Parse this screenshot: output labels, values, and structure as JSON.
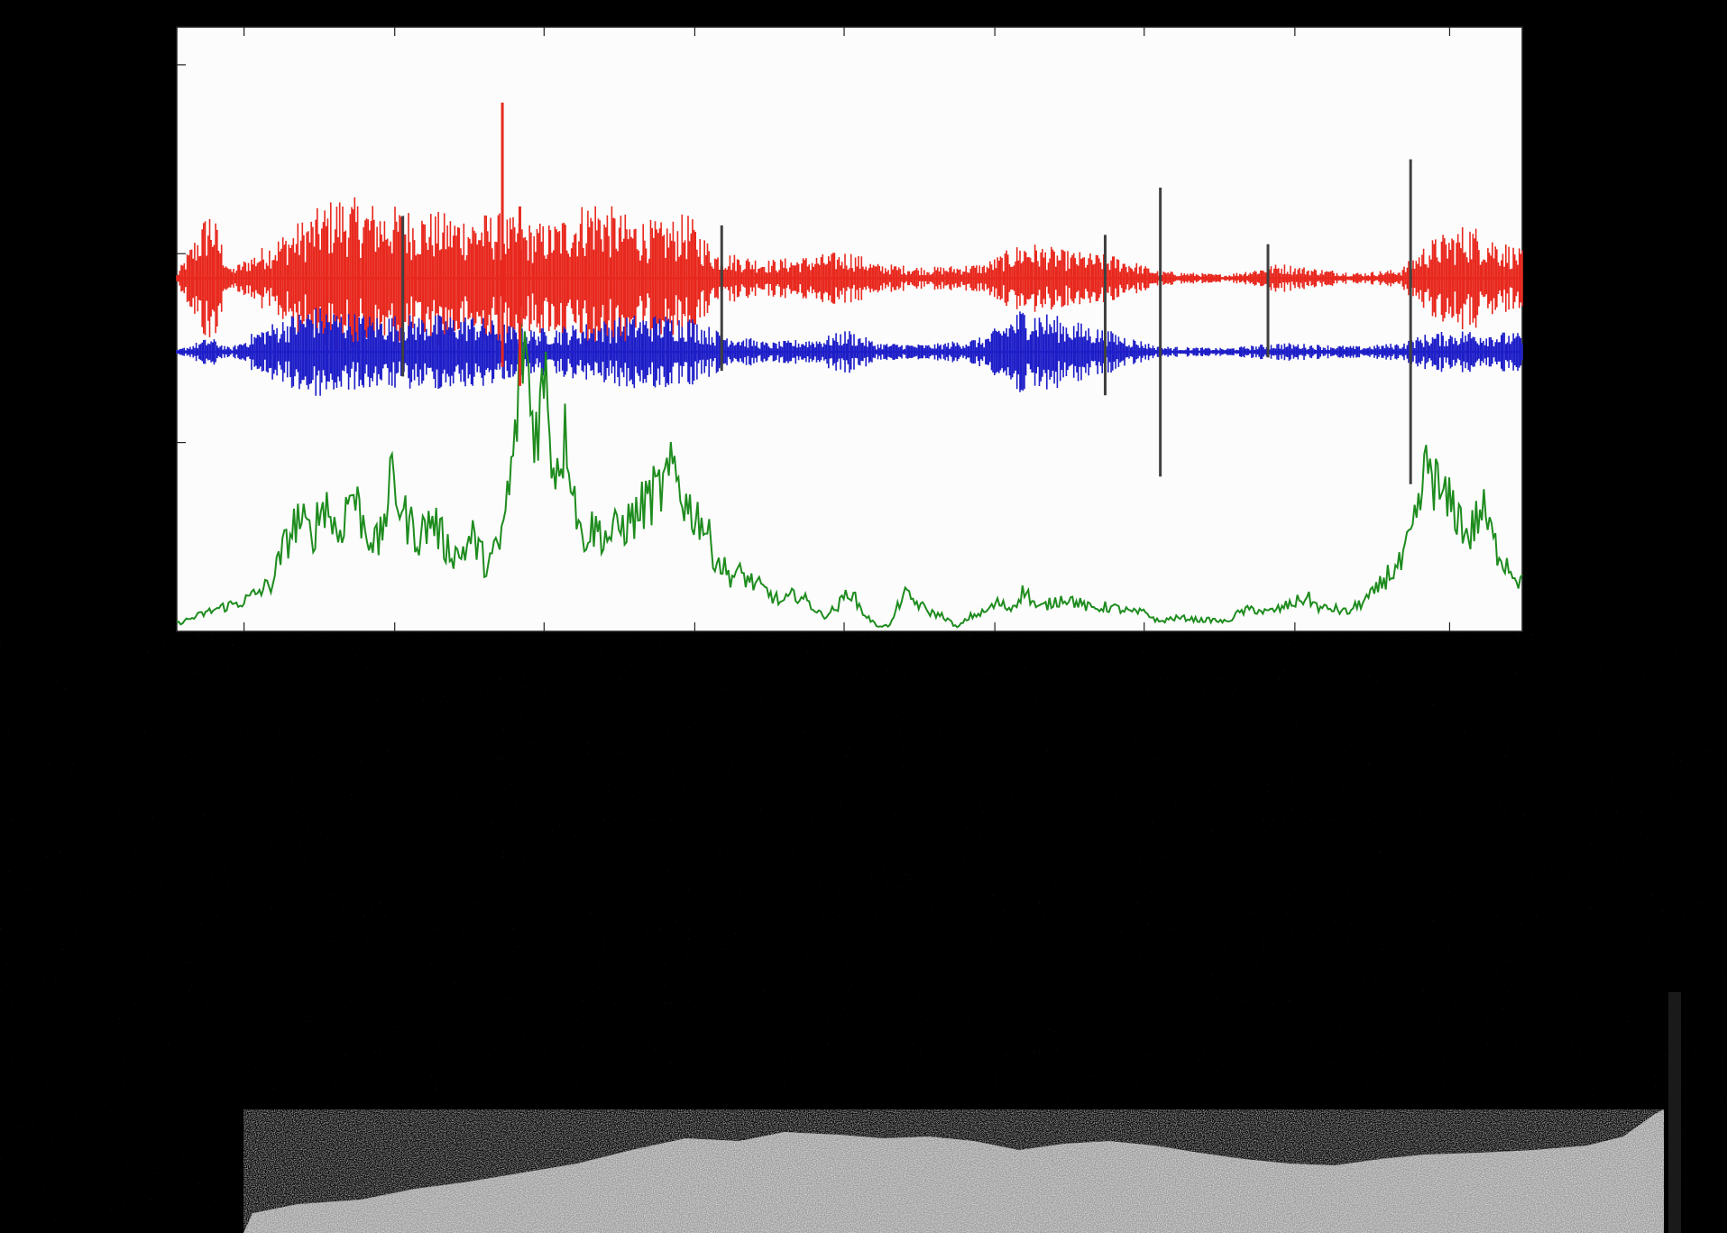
{
  "chart_data": {
    "type": "line",
    "title": "",
    "xlabel": "",
    "ylabel": "",
    "x_range": [
      0,
      100
    ],
    "y_range": [
      0,
      3.2
    ],
    "x_ticks": [
      5,
      16.2,
      27.3,
      38.5,
      49.6,
      60.8,
      71.9,
      83.1,
      94.6
    ],
    "y_ticks": [
      1.0,
      2.0,
      3.0
    ],
    "tick_labels_shown": false,
    "grid": false,
    "legend": "none",
    "background": "#000000",
    "plot_background": "#fcfcfc",
    "series": [
      {
        "color": "#e8281e",
        "kind": "spike-trace",
        "baseline": 1.87,
        "envelope": [
          [
            0,
            0.02
          ],
          [
            2.5,
            0.4
          ],
          [
            4,
            0.05
          ],
          [
            8,
            0.25
          ],
          [
            12,
            0.45
          ],
          [
            15,
            0.4
          ],
          [
            20,
            0.35
          ],
          [
            24,
            0.35
          ],
          [
            26,
            0.3
          ],
          [
            28,
            0.3
          ],
          [
            31,
            0.45
          ],
          [
            33,
            0.35
          ],
          [
            36,
            0.3
          ],
          [
            38,
            0.35
          ],
          [
            40,
            0.15
          ],
          [
            44,
            0.1
          ],
          [
            47,
            0.12
          ],
          [
            50,
            0.15
          ],
          [
            52,
            0.08
          ],
          [
            56,
            0.06
          ],
          [
            60,
            0.08
          ],
          [
            63,
            0.2
          ],
          [
            66,
            0.15
          ],
          [
            70,
            0.12
          ],
          [
            73,
            0.04
          ],
          [
            78,
            0.02
          ],
          [
            82,
            0.08
          ],
          [
            85,
            0.05
          ],
          [
            88,
            0.03
          ],
          [
            91,
            0.05
          ],
          [
            93,
            0.2
          ],
          [
            96,
            0.3
          ],
          [
            100,
            0.15
          ]
        ]
      },
      {
        "color": "#1e1ec8",
        "kind": "spike-trace",
        "baseline": 1.48,
        "envelope": [
          [
            0,
            0.01
          ],
          [
            2.5,
            0.08
          ],
          [
            4,
            0.02
          ],
          [
            6,
            0.12
          ],
          [
            10,
            0.25
          ],
          [
            14,
            0.2
          ],
          [
            18,
            0.2
          ],
          [
            22,
            0.2
          ],
          [
            26,
            0.12
          ],
          [
            30,
            0.15
          ],
          [
            34,
            0.2
          ],
          [
            38,
            0.2
          ],
          [
            40,
            0.12
          ],
          [
            44,
            0.05
          ],
          [
            48,
            0.08
          ],
          [
            50,
            0.12
          ],
          [
            52,
            0.05
          ],
          [
            56,
            0.04
          ],
          [
            60,
            0.08
          ],
          [
            63,
            0.25
          ],
          [
            66,
            0.18
          ],
          [
            70,
            0.1
          ],
          [
            73,
            0.03
          ],
          [
            78,
            0.02
          ],
          [
            82,
            0.05
          ],
          [
            85,
            0.04
          ],
          [
            88,
            0.03
          ],
          [
            91,
            0.05
          ],
          [
            93,
            0.1
          ],
          [
            96,
            0.12
          ],
          [
            100,
            0.1
          ]
        ]
      },
      {
        "color": "#1e8c1e",
        "kind": "envelope-line",
        "values": [
          [
            0,
            0.04
          ],
          [
            3,
            0.12
          ],
          [
            5,
            0.16
          ],
          [
            7,
            0.25
          ],
          [
            8,
            0.45
          ],
          [
            9,
            0.6
          ],
          [
            10,
            0.5
          ],
          [
            11,
            0.7
          ],
          [
            12,
            0.5
          ],
          [
            13,
            0.75
          ],
          [
            14,
            0.55
          ],
          [
            15,
            0.45
          ],
          [
            16,
            0.8
          ],
          [
            17,
            0.6
          ],
          [
            18,
            0.5
          ],
          [
            19,
            0.6
          ],
          [
            20,
            0.45
          ],
          [
            21,
            0.4
          ],
          [
            22,
            0.5
          ],
          [
            23,
            0.35
          ],
          [
            24,
            0.45
          ],
          [
            25,
            0.9
          ],
          [
            25.8,
            1.6
          ],
          [
            26.5,
            1.05
          ],
          [
            27.5,
            1.35
          ],
          [
            28,
            0.85
          ],
          [
            29,
            1.05
          ],
          [
            30,
            0.5
          ],
          [
            31,
            0.55
          ],
          [
            32,
            0.5
          ],
          [
            33,
            0.55
          ],
          [
            34,
            0.6
          ],
          [
            35,
            0.7
          ],
          [
            36,
            0.75
          ],
          [
            37,
            0.85
          ],
          [
            38,
            0.65
          ],
          [
            39,
            0.6
          ],
          [
            40,
            0.4
          ],
          [
            41,
            0.3
          ],
          [
            42,
            0.3
          ],
          [
            44,
            0.2
          ],
          [
            45,
            0.15
          ],
          [
            46,
            0.2
          ],
          [
            47,
            0.15
          ],
          [
            48,
            0.08
          ],
          [
            49,
            0.12
          ],
          [
            50,
            0.22
          ],
          [
            51,
            0.1
          ],
          [
            52,
            0.03
          ],
          [
            53,
            0.03
          ],
          [
            54,
            0.2
          ],
          [
            55,
            0.15
          ],
          [
            56,
            0.1
          ],
          [
            57,
            0.08
          ],
          [
            58,
            0.02
          ],
          [
            59,
            0.08
          ],
          [
            60,
            0.1
          ],
          [
            61,
            0.15
          ],
          [
            62,
            0.12
          ],
          [
            63,
            0.22
          ],
          [
            64,
            0.12
          ],
          [
            65,
            0.15
          ],
          [
            66,
            0.18
          ],
          [
            67,
            0.15
          ],
          [
            68,
            0.12
          ],
          [
            69,
            0.13
          ],
          [
            70,
            0.12
          ],
          [
            71,
            0.1
          ],
          [
            72,
            0.1
          ],
          [
            73,
            0.05
          ],
          [
            74,
            0.07
          ],
          [
            75,
            0.07
          ],
          [
            76,
            0.06
          ],
          [
            77,
            0.06
          ],
          [
            78,
            0.05
          ],
          [
            79,
            0.1
          ],
          [
            80,
            0.12
          ],
          [
            81,
            0.1
          ],
          [
            82,
            0.12
          ],
          [
            83,
            0.15
          ],
          [
            84,
            0.18
          ],
          [
            85,
            0.12
          ],
          [
            86,
            0.12
          ],
          [
            87,
            0.1
          ],
          [
            88,
            0.15
          ],
          [
            89,
            0.2
          ],
          [
            90,
            0.3
          ],
          [
            91,
            0.35
          ],
          [
            92,
            0.55
          ],
          [
            93,
            0.9
          ],
          [
            94,
            0.7
          ],
          [
            95,
            0.65
          ],
          [
            96,
            0.5
          ],
          [
            97,
            0.65
          ],
          [
            98,
            0.45
          ],
          [
            99,
            0.35
          ],
          [
            100,
            0.25
          ]
        ]
      }
    ],
    "vertical_lines": [
      {
        "color": "#e8281e",
        "x": 24.2,
        "y_from": 1.4,
        "y_to": 2.8
      },
      {
        "color": "#e8281e",
        "x": 25.5,
        "y_from": 1.3,
        "y_to": 2.25
      },
      {
        "color": "#404040",
        "x": 73.1,
        "y_from": 0.82,
        "y_to": 2.35
      },
      {
        "color": "#404040",
        "x": 91.7,
        "y_from": 0.78,
        "y_to": 2.5
      },
      {
        "color": "#404040",
        "x": 16.8,
        "y_from": 1.35,
        "y_to": 2.2
      },
      {
        "color": "#404040",
        "x": 40.5,
        "y_from": 1.38,
        "y_to": 2.15
      },
      {
        "color": "#404040",
        "x": 69.0,
        "y_from": 1.25,
        "y_to": 2.1
      },
      {
        "color": "#404040",
        "x": 81.1,
        "y_from": 1.45,
        "y_to": 2.05
      }
    ]
  },
  "video_frame": {
    "kind": "grayscale microscopy frame",
    "bright_region": "bottom"
  }
}
